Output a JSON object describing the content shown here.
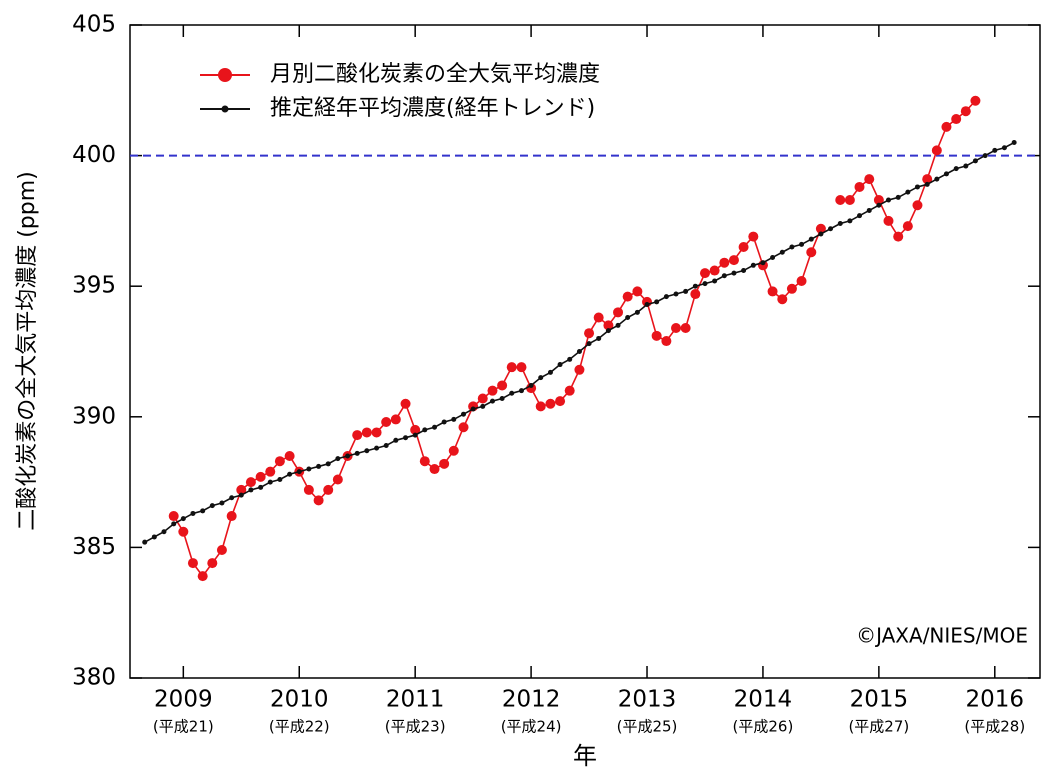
{
  "chart_data": {
    "type": "line",
    "ylabel": "二酸化炭素の全大気平均濃度 (ppm)",
    "xlabel": "年",
    "annotation": "©JAXA/NIES/MOE",
    "legend": "top-left",
    "xlim": [
      2008.54,
      2016.39
    ],
    "ylim": [
      380,
      405
    ],
    "xticks": [
      2009,
      2010,
      2011,
      2012,
      2013,
      2014,
      2015,
      2016
    ],
    "xtick_sublabels": [
      "(平成21)",
      "(平成22)",
      "(平成23)",
      "(平成24)",
      "(平成25)",
      "(平成26)",
      "(平成27)",
      "(平成28)"
    ],
    "yticks": [
      380,
      385,
      390,
      395,
      400,
      405
    ],
    "reference_line": {
      "value": 400,
      "color": "#3333cc"
    },
    "x": [
      2008.667,
      2008.75,
      2008.833,
      2008.917,
      2009,
      2009.083,
      2009.167,
      2009.25,
      2009.333,
      2009.417,
      2009.5,
      2009.583,
      2009.667,
      2009.75,
      2009.833,
      2009.917,
      2010,
      2010.083,
      2010.167,
      2010.25,
      2010.333,
      2010.417,
      2010.5,
      2010.583,
      2010.667,
      2010.75,
      2010.833,
      2010.917,
      2011,
      2011.083,
      2011.167,
      2011.25,
      2011.333,
      2011.417,
      2011.5,
      2011.583,
      2011.667,
      2011.75,
      2011.833,
      2011.917,
      2012,
      2012.083,
      2012.167,
      2012.25,
      2012.333,
      2012.417,
      2012.5,
      2012.583,
      2012.667,
      2012.75,
      2012.833,
      2012.917,
      2013,
      2013.083,
      2013.167,
      2013.25,
      2013.333,
      2013.417,
      2013.5,
      2013.583,
      2013.667,
      2013.75,
      2013.833,
      2013.917,
      2014,
      2014.083,
      2014.167,
      2014.25,
      2014.333,
      2014.417,
      2014.5,
      2014.583,
      2014.667,
      2014.75,
      2014.833,
      2014.917,
      2015,
      2015.083,
      2015.167,
      2015.25,
      2015.333,
      2015.417,
      2015.5,
      2015.583,
      2015.667,
      2015.75,
      2015.833,
      2015.917,
      2016,
      2016.083,
      2016.167
    ],
    "series": [
      {
        "name": "月別二酸化炭素の全大気平均濃度",
        "color": "#e8141b",
        "marker_size": 5,
        "values": [
          null,
          null,
          null,
          386.2,
          385.6,
          384.4,
          383.9,
          384.4,
          384.9,
          386.2,
          387.2,
          387.5,
          387.7,
          387.9,
          388.3,
          388.5,
          387.9,
          387.2,
          386.8,
          387.2,
          387.6,
          388.5,
          389.3,
          389.4,
          389.4,
          389.8,
          389.9,
          390.5,
          389.5,
          388.3,
          388.0,
          388.2,
          388.7,
          389.6,
          390.4,
          390.7,
          391.0,
          391.2,
          391.9,
          391.9,
          391.1,
          390.4,
          390.5,
          390.6,
          391.0,
          391.8,
          393.2,
          393.8,
          393.5,
          394.0,
          394.6,
          394.8,
          394.4,
          393.1,
          392.9,
          393.4,
          393.4,
          394.7,
          395.5,
          395.6,
          395.9,
          396.0,
          396.5,
          396.9,
          395.8,
          394.8,
          394.5,
          394.9,
          395.2,
          396.3,
          397.2,
          null,
          398.3,
          398.3,
          398.8,
          399.1,
          398.3,
          397.5,
          396.9,
          397.3,
          398.1,
          399.1,
          400.2,
          401.1,
          401.4,
          401.7,
          402.1,
          null,
          null,
          null,
          null
        ]
      },
      {
        "name": "推定経年平均濃度(経年トレンド)",
        "color": "#111111",
        "marker_size": 2.5,
        "values": [
          385.2,
          385.4,
          385.6,
          385.9,
          386.1,
          386.3,
          386.4,
          386.6,
          386.7,
          386.9,
          387.0,
          387.2,
          387.3,
          387.5,
          387.6,
          387.8,
          387.9,
          388.0,
          388.1,
          388.2,
          388.4,
          388.5,
          388.6,
          388.7,
          388.8,
          388.9,
          389.1,
          389.2,
          389.3,
          389.5,
          389.6,
          389.8,
          389.9,
          390.1,
          390.3,
          390.4,
          390.6,
          390.7,
          390.9,
          391.0,
          391.2,
          391.5,
          391.7,
          392.0,
          392.2,
          392.5,
          392.8,
          393.0,
          393.3,
          393.5,
          393.8,
          394.0,
          394.3,
          394.4,
          394.6,
          394.7,
          394.8,
          395.0,
          395.1,
          395.2,
          395.4,
          395.5,
          395.6,
          395.8,
          395.9,
          396.1,
          396.3,
          396.5,
          396.6,
          396.8,
          397.0,
          397.2,
          397.4,
          397.5,
          397.7,
          397.9,
          398.1,
          398.3,
          398.4,
          398.6,
          398.8,
          398.9,
          399.1,
          399.3,
          399.5,
          399.6,
          399.8,
          400.0,
          400.2,
          400.3,
          400.5
        ]
      }
    ]
  }
}
